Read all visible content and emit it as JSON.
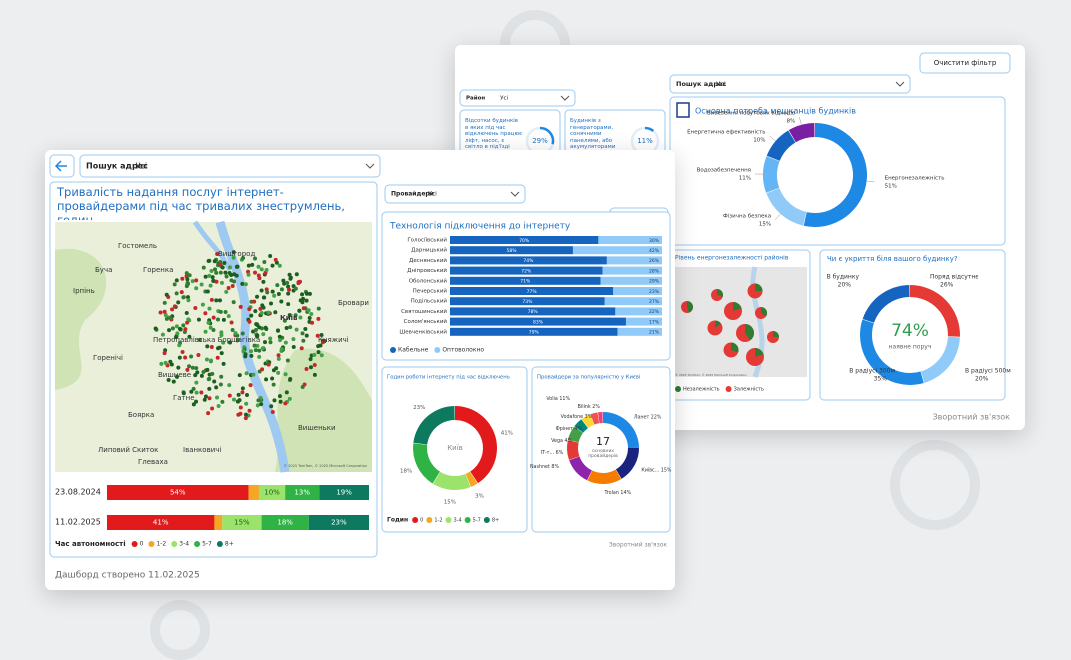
{
  "front": {
    "search": {
      "label": "Пошук адрес",
      "value": "Усі"
    },
    "providers_filter": {
      "label": "Провайдери",
      "value": "Усі"
    },
    "clear_filter": "Очистити фільтр",
    "outage": {
      "title": "Тривалість надання послуг інтернет-провайдерами під час тривалих знеструмлень, годин",
      "map_labels": [
        "Гостомель",
        "Вишгород",
        "Буча",
        "Горенка",
        "Ірпінь",
        "Бровари",
        "Петропавлівська Борщагівка",
        "Горенічі",
        "Вишневе",
        "Гатне",
        "Боярка",
        "Княжичі",
        "Вишеньки",
        "Липовий Скиток",
        "Глеваха",
        "Іванковичі",
        "Київ"
      ],
      "map_attribution": "© 2025 TomTom, © 2025 Microsoft Corporation",
      "bars": [
        {
          "date": "23.08.2024",
          "values": [
            54,
            4,
            10,
            13,
            19
          ],
          "value_labels": [
            "54%",
            null,
            "10%",
            "13%",
            "19%"
          ]
        },
        {
          "date": "11.02.2025",
          "values": [
            41,
            3,
            15,
            18,
            23
          ],
          "value_labels": [
            "41%",
            null,
            "15%",
            "18%",
            "23%"
          ]
        }
      ],
      "legend_title": "Час автономності",
      "categories": [
        "0",
        "1-2",
        "3-4",
        "5-7",
        "8+"
      ],
      "colors": [
        "#e31a1c",
        "#f5a623",
        "#9be36b",
        "#2fb344",
        "#0d7a5f"
      ]
    },
    "technology": {
      "title": "Технологія підключення до інтернету",
      "categories": [
        "Голосіївський",
        "Дарницький",
        "Деснянський",
        "Дніпровський",
        "Оболонський",
        "Печерський",
        "Подільський",
        "Святошинський",
        "Солом'янський",
        "Шевченківський"
      ],
      "series": [
        {
          "name": "Кабельне",
          "color": "#1565c0",
          "values": [
            70,
            58,
            74,
            72,
            71,
            77,
            73,
            78,
            83,
            79
          ],
          "value_labels": [
            "70%",
            "58%",
            "74%",
            "72%",
            "71%",
            "77%",
            "73%",
            "78%",
            "83%",
            "79%"
          ]
        },
        {
          "name": "Оптоволокно",
          "color": "#90caf9",
          "values": [
            30,
            42,
            26,
            28,
            29,
            23,
            27,
            22,
            17,
            21
          ],
          "value_labels": [
            "30%",
            "42%",
            "26%",
            "28%",
            "29%",
            "23%",
            "27%",
            "22%",
            "17%",
            "21%"
          ]
        }
      ]
    },
    "hours": {
      "title": "Годин роботи інтернету під час відключень",
      "center": "Київ",
      "values": [
        41,
        3,
        15,
        18,
        23
      ],
      "value_labels": [
        "41%",
        "3%",
        "15%",
        "18%",
        "23%"
      ],
      "legend_title": "Годин",
      "categories": [
        "0",
        "1-2",
        "3-4",
        "5-7",
        "8+"
      ],
      "colors": [
        "#e31a1c",
        "#f5a623",
        "#9be36b",
        "#2fb344",
        "#0d7a5f"
      ]
    },
    "popularity": {
      "title": "Провайдери за популярністю у Києві",
      "center_value": "17",
      "center_label": "основних провайдерів",
      "categories": [
        "Ланет",
        "Київс...",
        "Trolan",
        "Volia",
        "Nashnet",
        "ІТ-т...",
        "Vega",
        "Фрінет",
        "Vodafone",
        "Bilink"
      ],
      "values": [
        22,
        15,
        14,
        11,
        8,
        6,
        4,
        4,
        3,
        2
      ],
      "value_labels": [
        "22%",
        "15%",
        "14%",
        "11%",
        "8%",
        "6%",
        "4%",
        "4%",
        "3%",
        "2%"
      ],
      "colors": [
        "#1e88e5",
        "#1a237e",
        "#f57c00",
        "#8e24aa",
        "#e53935",
        "#43a047",
        "#00897b",
        "#fdd835",
        "#ef5350",
        "#ec407a"
      ]
    },
    "feedback": "Зворотний зв'язок",
    "created": "Дашборд створено 11.02.2025"
  },
  "back": {
    "district_filter": {
      "label": "Район",
      "value": "Усі"
    },
    "search": {
      "label": "Пошук адрес",
      "value": "Усі"
    },
    "clear_filter": "Очистити фільтр",
    "kpis": [
      {
        "text": "Відсотки будинків в яких під час відключень працює ліфт, насос, є світло в під'їзді",
        "value": 29,
        "value_label": "29%"
      },
      {
        "text": "Будинків з генераторами, сонячними панелями, або акумуляторами",
        "value": 11,
        "value_label": "11%"
      }
    ],
    "needs": {
      "title": "Основна потреба мешканців будинків",
      "categories": [
        "Енергонезалежність",
        "Фізична безпека",
        "Водозабезпечення",
        "Енергетична ефективність",
        "Вивезення побутових відходів"
      ],
      "values": [
        51,
        15,
        11,
        10,
        8
      ],
      "value_labels": [
        "51%",
        "15%",
        "11%",
        "10%",
        "8%"
      ],
      "colors": [
        "#1e88e5",
        "#90caf9",
        "#64b5f6",
        "#1565c0",
        "#7b1fa2"
      ]
    },
    "districts": {
      "title": "Рівень енергонезалежності районів",
      "values": [
        30,
        25,
        20,
        35,
        15,
        40,
        25,
        30,
        20,
        45
      ],
      "legend": [
        "Незалежність",
        "Залежність"
      ],
      "colors": [
        "#2e7d32",
        "#e53935"
      ],
      "map_attribution": "© 2025 TomTom, © 2025 Microsoft Corporation"
    },
    "shelter": {
      "title": "Чи є укриття біля вашого будинку?",
      "center_value": "74%",
      "center_label": "наявне поруч",
      "categories": [
        "Поряд відсутнє",
        "В радіусі 500м",
        "В радіусі 300м",
        "В будинку"
      ],
      "values": [
        26,
        20,
        35,
        20
      ],
      "value_labels": [
        "26%",
        "20%",
        "35%",
        "20%"
      ],
      "colors": [
        "#e53935",
        "#90caf9",
        "#1e88e5",
        "#1565c0"
      ]
    },
    "feedback": "Зворотний зв'язок"
  }
}
